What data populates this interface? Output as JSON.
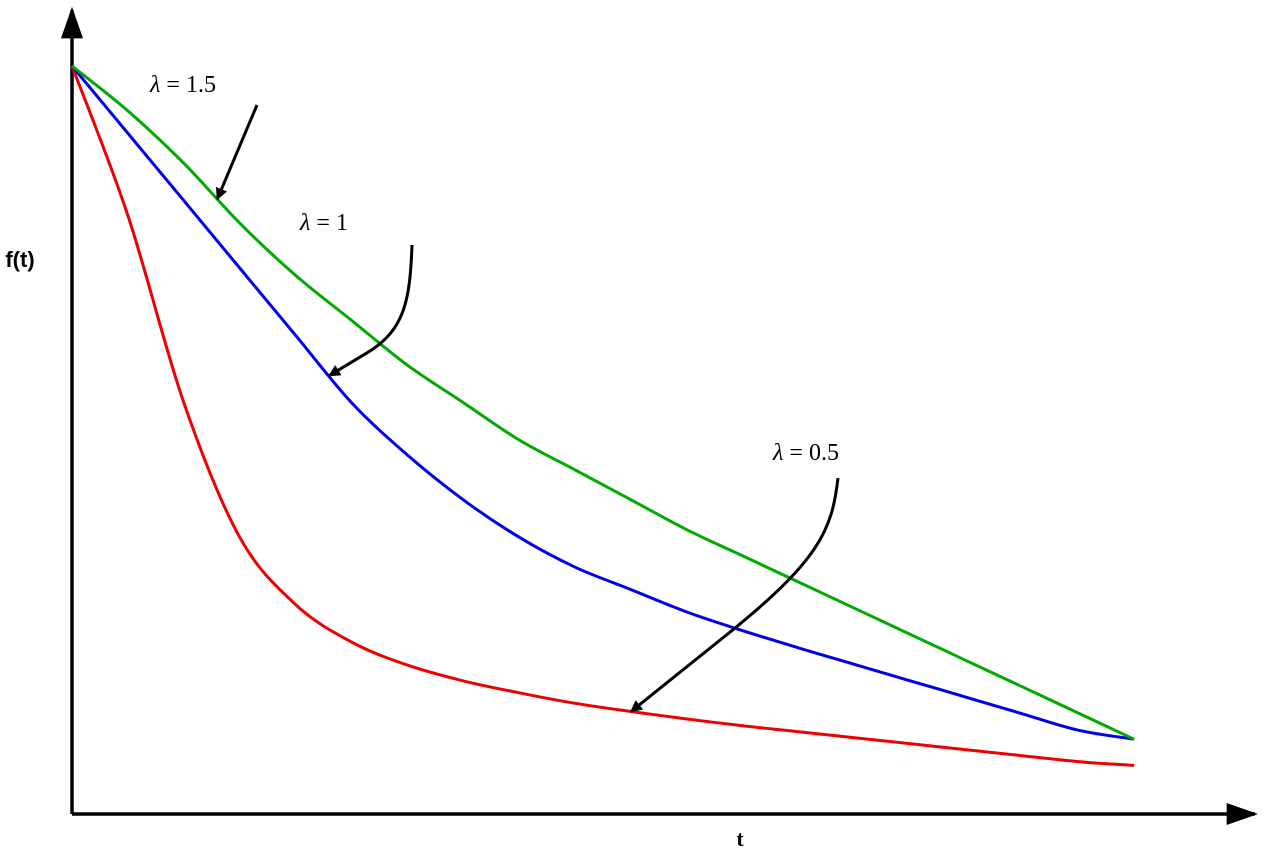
{
  "chart_data": {
    "type": "line",
    "title": "",
    "xlabel": "t",
    "ylabel": "f(t)",
    "grid": false,
    "legend": "none",
    "x_ticks": false,
    "y_ticks": false,
    "xlim": [
      0,
      1
    ],
    "ylim": [
      0,
      1
    ],
    "x": [
      0,
      0.05,
      0.1,
      0.15,
      0.2,
      0.25,
      0.3,
      0.35,
      0.4,
      0.45,
      0.5,
      0.55,
      0.6,
      0.65,
      0.7,
      0.75,
      0.8,
      0.85,
      0.9,
      0.95
    ],
    "series": [
      {
        "name": "λ = 0.5",
        "color": "#ee0000",
        "values": [
          1.0,
          0.8,
          0.55,
          0.37,
          0.28,
          0.23,
          0.199,
          0.178,
          0.162,
          0.148,
          0.137,
          0.127,
          0.118,
          0.11,
          0.102,
          0.094,
          0.086,
          0.078,
          0.07,
          0.065
        ]
      },
      {
        "name": "λ = 1",
        "color": "#0000ee",
        "values": [
          1.0,
          0.91,
          0.82,
          0.73,
          0.64,
          0.55,
          0.48,
          0.42,
          0.37,
          0.33,
          0.3,
          0.27,
          0.245,
          0.222,
          0.2,
          0.178,
          0.156,
          0.134,
          0.112,
          0.1
        ]
      },
      {
        "name": "λ = 1.5",
        "color": "#00aa00",
        "values": [
          1.0,
          0.94,
          0.87,
          0.79,
          0.72,
          0.66,
          0.6,
          0.55,
          0.5,
          0.46,
          0.42,
          0.38,
          0.345,
          0.31,
          0.275,
          0.24,
          0.205,
          0.17,
          0.135,
          0.1
        ]
      }
    ],
    "annotations": [
      {
        "text_prefix": "λ",
        "text_suffix": " = 1.5",
        "series": "λ = 1.5",
        "x": 0.13
      },
      {
        "text_prefix": "λ",
        "text_suffix": " = 1",
        "series": "λ = 1",
        "x": 0.23
      },
      {
        "text_prefix": "λ",
        "text_suffix": " = 0.5",
        "series": "λ = 0.5",
        "x": 0.5
      }
    ]
  }
}
